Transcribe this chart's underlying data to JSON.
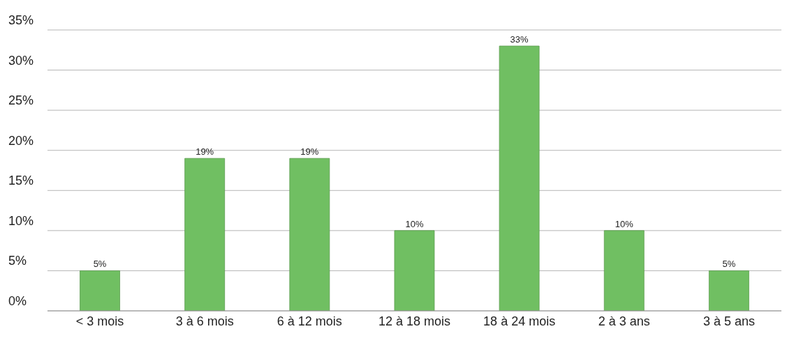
{
  "chart_data": {
    "type": "bar",
    "categories": [
      "< 3 mois",
      "3 à 6 mois",
      "6 à 12 mois",
      "12 à 18 mois",
      "18 à 24 mois",
      "2 à 3 ans",
      "3 à 5 ans"
    ],
    "values": [
      5,
      19,
      19,
      10,
      33,
      10,
      5
    ],
    "value_labels": [
      "5%",
      "19%",
      "19%",
      "10%",
      "33%",
      "10%",
      "5%"
    ],
    "color": "#70bf62",
    "ylim": [
      0,
      35
    ],
    "yticks": [
      {
        "value": 0,
        "label": "0%"
      },
      {
        "value": 5,
        "label": "5%"
      },
      {
        "value": 10,
        "label": "10%"
      },
      {
        "value": 15,
        "label": "15%"
      },
      {
        "value": 20,
        "label": "20%"
      },
      {
        "value": 25,
        "label": "25%"
      },
      {
        "value": 30,
        "label": "30%"
      },
      {
        "value": 35,
        "label": "35%"
      }
    ],
    "grid": "y",
    "legend": false
  }
}
